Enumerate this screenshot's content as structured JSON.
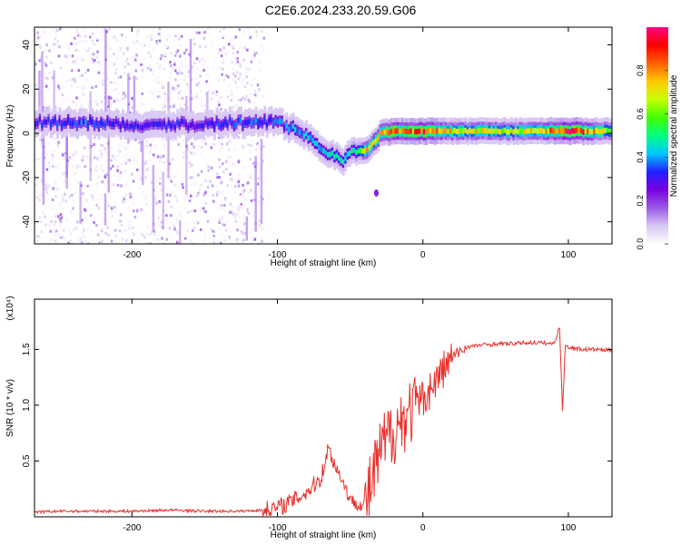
{
  "title": "C2E6.2024.233.20.59.G06",
  "colors": {
    "snr_line": "#e8302c",
    "axis": "#000000",
    "colormap": [
      "#ffffff",
      "#d8c8f4",
      "#9b59e6",
      "#7a00e0",
      "#2020ff",
      "#00c8ff",
      "#00ff80",
      "#40ff00",
      "#c8ff00",
      "#ffc800",
      "#ff6000",
      "#ff0000",
      "#ff0080"
    ]
  },
  "chart_data": [
    {
      "id": "spectrogram",
      "type": "heatmap",
      "title": "C2E6.2024.233.20.59.G06",
      "xlabel": "Height of straight line (km)",
      "ylabel": "Frequency (Hz)",
      "xlim": [
        -267,
        130
      ],
      "ylim": [
        -50,
        48
      ],
      "xticks": [
        -200,
        -100,
        0,
        100
      ],
      "xtick_labels": [
        "-200",
        "-100",
        "0",
        "100"
      ],
      "yticks": [
        -40,
        -20,
        0,
        20,
        40
      ],
      "ytick_labels": [
        "-40",
        "-20",
        "0",
        "20",
        "40"
      ],
      "colorbar": {
        "label": "Normalized spectral amplitude",
        "range": [
          0,
          1
        ],
        "ticks": [
          0.0,
          0.2,
          0.4,
          0.6,
          0.8
        ],
        "tick_labels": [
          "0.0",
          "0.2",
          "0.4",
          "0.6",
          "0.8"
        ]
      },
      "ridge": {
        "x": [
          -267,
          -240,
          -200,
          -160,
          -120,
          -100,
          -90,
          -80,
          -70,
          -60,
          -55,
          -50,
          -45,
          -40,
          -35,
          -30,
          -20,
          -10,
          0,
          20,
          40,
          60,
          80,
          100,
          130
        ],
        "frequency": [
          5,
          5,
          4,
          4,
          5,
          5,
          2,
          -2,
          -7,
          -11,
          -12,
          -9,
          -8,
          -8,
          -4,
          0,
          1,
          1,
          1,
          1,
          1,
          1,
          1,
          1,
          1
        ],
        "amplitude": [
          0.3,
          0.35,
          0.3,
          0.3,
          0.35,
          0.35,
          0.4,
          0.4,
          0.4,
          0.45,
          0.45,
          0.45,
          0.5,
          0.7,
          0.7,
          0.75,
          0.85,
          0.85,
          0.9,
          0.7,
          0.7,
          0.65,
          0.7,
          0.95,
          0.6
        ]
      },
      "noise_region_x": [
        -267,
        -110
      ],
      "isolated_blob": {
        "x": -32,
        "frequency": -27
      }
    },
    {
      "id": "snr",
      "type": "line",
      "title": "",
      "xlabel": "Height of straight line (km)",
      "ylabel": "SNR (10 * v/v)",
      "y_multiplier": "(x10⁴)",
      "xlim": [
        -267,
        130
      ],
      "ylim": [
        0,
        1.95
      ],
      "xticks": [
        -200,
        -100,
        0,
        100
      ],
      "xtick_labels": [
        "-200",
        "-100",
        "0",
        "100"
      ],
      "yticks": [
        0.5,
        1.0,
        1.5
      ],
      "ytick_labels": [
        "0.5",
        "1.0",
        "1.5"
      ],
      "series": [
        {
          "x": [
            -267,
            -250,
            -225,
            -200,
            -175,
            -150,
            -125,
            -110,
            -100,
            -90,
            -80,
            -70,
            -65,
            -60,
            -55,
            -50,
            -45,
            -40,
            -35,
            -30,
            -25,
            -20,
            -15,
            -10,
            -5,
            0,
            5,
            10,
            15,
            20,
            25,
            30,
            40,
            50,
            60,
            70,
            80,
            90,
            94,
            96,
            98,
            100,
            110,
            120,
            130
          ],
          "y": [
            0.04,
            0.05,
            0.05,
            0.05,
            0.06,
            0.05,
            0.05,
            0.06,
            0.08,
            0.14,
            0.22,
            0.35,
            0.62,
            0.45,
            0.32,
            0.15,
            0.12,
            0.1,
            0.3,
            0.55,
            0.68,
            0.78,
            0.86,
            0.92,
            1.0,
            1.06,
            1.14,
            1.24,
            1.34,
            1.42,
            1.48,
            1.52,
            1.54,
            1.55,
            1.55,
            1.56,
            1.56,
            1.55,
            1.7,
            0.95,
            1.55,
            1.52,
            1.5,
            1.5,
            1.49
          ]
        }
      ]
    }
  ]
}
